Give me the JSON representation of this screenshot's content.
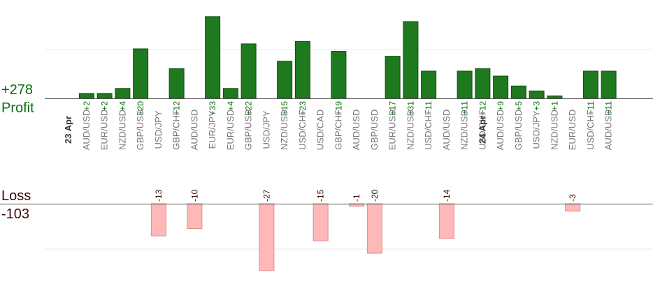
{
  "chart_data": {
    "type": "bar",
    "profit_label": "Profit",
    "loss_label": "Loss",
    "profit_total": "+278",
    "loss_total": "-103",
    "date_labels": [
      "23 Apr",
      "24 Apr"
    ],
    "categories": [
      "AUD/USD",
      "EUR/USD",
      "NZD/USD",
      "GBP/USD",
      "USD/JPY",
      "GBP/CHF",
      "AUD/USD",
      "EUR/JPY",
      "EUR/USD",
      "GBP/USD",
      "USD/JPY",
      "NZD/USD",
      "USD/CHF",
      "USD/CAD",
      "GBP/CHF",
      "AUD/USD",
      "GBP/USD",
      "EUR/USD",
      "NZD/USD",
      "USD/CHF",
      "AUD/USD",
      "NZD/USD",
      "USD/CHF",
      "AUD/USD",
      "GBP/USD",
      "USD/JPY",
      "NZD/USD",
      "EUR/USD",
      "USD/CHF",
      "AUD/USD"
    ],
    "date_positions": [
      0,
      23
    ],
    "values": [
      2,
      2,
      4,
      20,
      -13,
      12,
      -10,
      33,
      4,
      22,
      -27,
      15,
      23,
      -15,
      19,
      -1,
      -20,
      17,
      31,
      11,
      -14,
      11,
      12,
      9,
      5,
      3,
      1,
      -3,
      11,
      11
    ],
    "value_labels": [
      "+2",
      "+2",
      "+4",
      "+20",
      "-13",
      "+12",
      "-10",
      "+33",
      "+4",
      "+22",
      "-27",
      "+15",
      "+23",
      "-15",
      "+19",
      "-1",
      "-20",
      "+17",
      "+31",
      "+11",
      "-14",
      "+11",
      "+12",
      "+9",
      "+5",
      "+3",
      "+1",
      "-3",
      "+11",
      "+11"
    ],
    "colors": {
      "profit_fill": "#1f7a1f",
      "profit_stroke": "#0d4f0d",
      "loss_fill": "#ffb8b8",
      "loss_stroke": "#e08a8a",
      "profit_text": "#0a6e0a",
      "loss_text": "#3a0a0a",
      "axis": "#555555",
      "grid": "#e8e8e8",
      "category_text": "#777777",
      "date_text": "#333333"
    }
  }
}
